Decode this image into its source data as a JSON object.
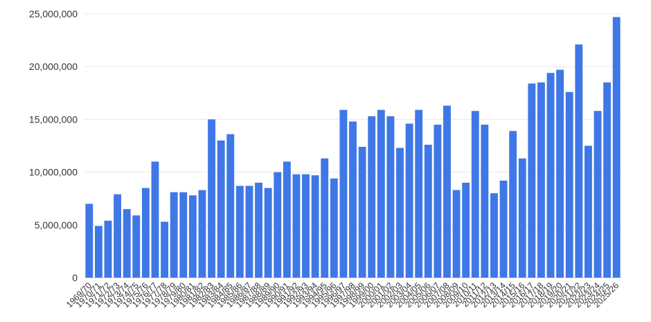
{
  "chart_data": {
    "type": "bar",
    "title": "",
    "xlabel": "",
    "ylabel": "",
    "ylim": [
      0,
      25000000
    ],
    "yticks": [
      0,
      5000000,
      10000000,
      15000000,
      20000000,
      25000000
    ],
    "ytick_labels": [
      "0",
      "5,000,000",
      "10,000,000",
      "15,000,000",
      "20,000,000",
      "25,000,000"
    ],
    "grid": true,
    "legend": "none",
    "bar_color": "#3f78e6",
    "categories": [
      "1969/70",
      "1970/71",
      "1971/72",
      "1972/73",
      "1973/74",
      "1974/75",
      "1975/76",
      "1976/77",
      "1977/78",
      "1978/79",
      "1979/80",
      "1980/81",
      "1981/82",
      "1982/83",
      "1983/84",
      "1984/85",
      "1985/86",
      "1986/87",
      "1987/88",
      "1988/89",
      "1989/90",
      "1990/91",
      "1991/92",
      "1992/93",
      "1993/94",
      "1994/95",
      "1995/96",
      "1996/97",
      "1997/98",
      "1998/99",
      "1999/00",
      "2000/01",
      "2001/02",
      "2002/03",
      "2003/04",
      "2004/05",
      "2005/06",
      "2006/07",
      "2007/08",
      "2008/09",
      "2009/10",
      "2010/11",
      "2011/12",
      "2012/13",
      "2013/14",
      "2014/15",
      "2015/16",
      "2016/17",
      "2017/18",
      "2018/19",
      "2019/20",
      "2020/21",
      "2021/22",
      "2022/23",
      "2023/24",
      "2024/25",
      "2025/26"
    ],
    "values": [
      7000000,
      4900000,
      5400000,
      7900000,
      6500000,
      5900000,
      8500000,
      11000000,
      5300000,
      8100000,
      8100000,
      7800000,
      8300000,
      15000000,
      13000000,
      13600000,
      8700000,
      8700000,
      9000000,
      8500000,
      10000000,
      11000000,
      9800000,
      9800000,
      9700000,
      11300000,
      9400000,
      15900000,
      14800000,
      12400000,
      15300000,
      15900000,
      15300000,
      12300000,
      14600000,
      15900000,
      12600000,
      14500000,
      16300000,
      8300000,
      9000000,
      15800000,
      14500000,
      8000000,
      9200000,
      13900000,
      11300000,
      18400000,
      18500000,
      19400000,
      19700000,
      17600000,
      22100000,
      12500000,
      15800000,
      18500000,
      24700000
    ]
  }
}
